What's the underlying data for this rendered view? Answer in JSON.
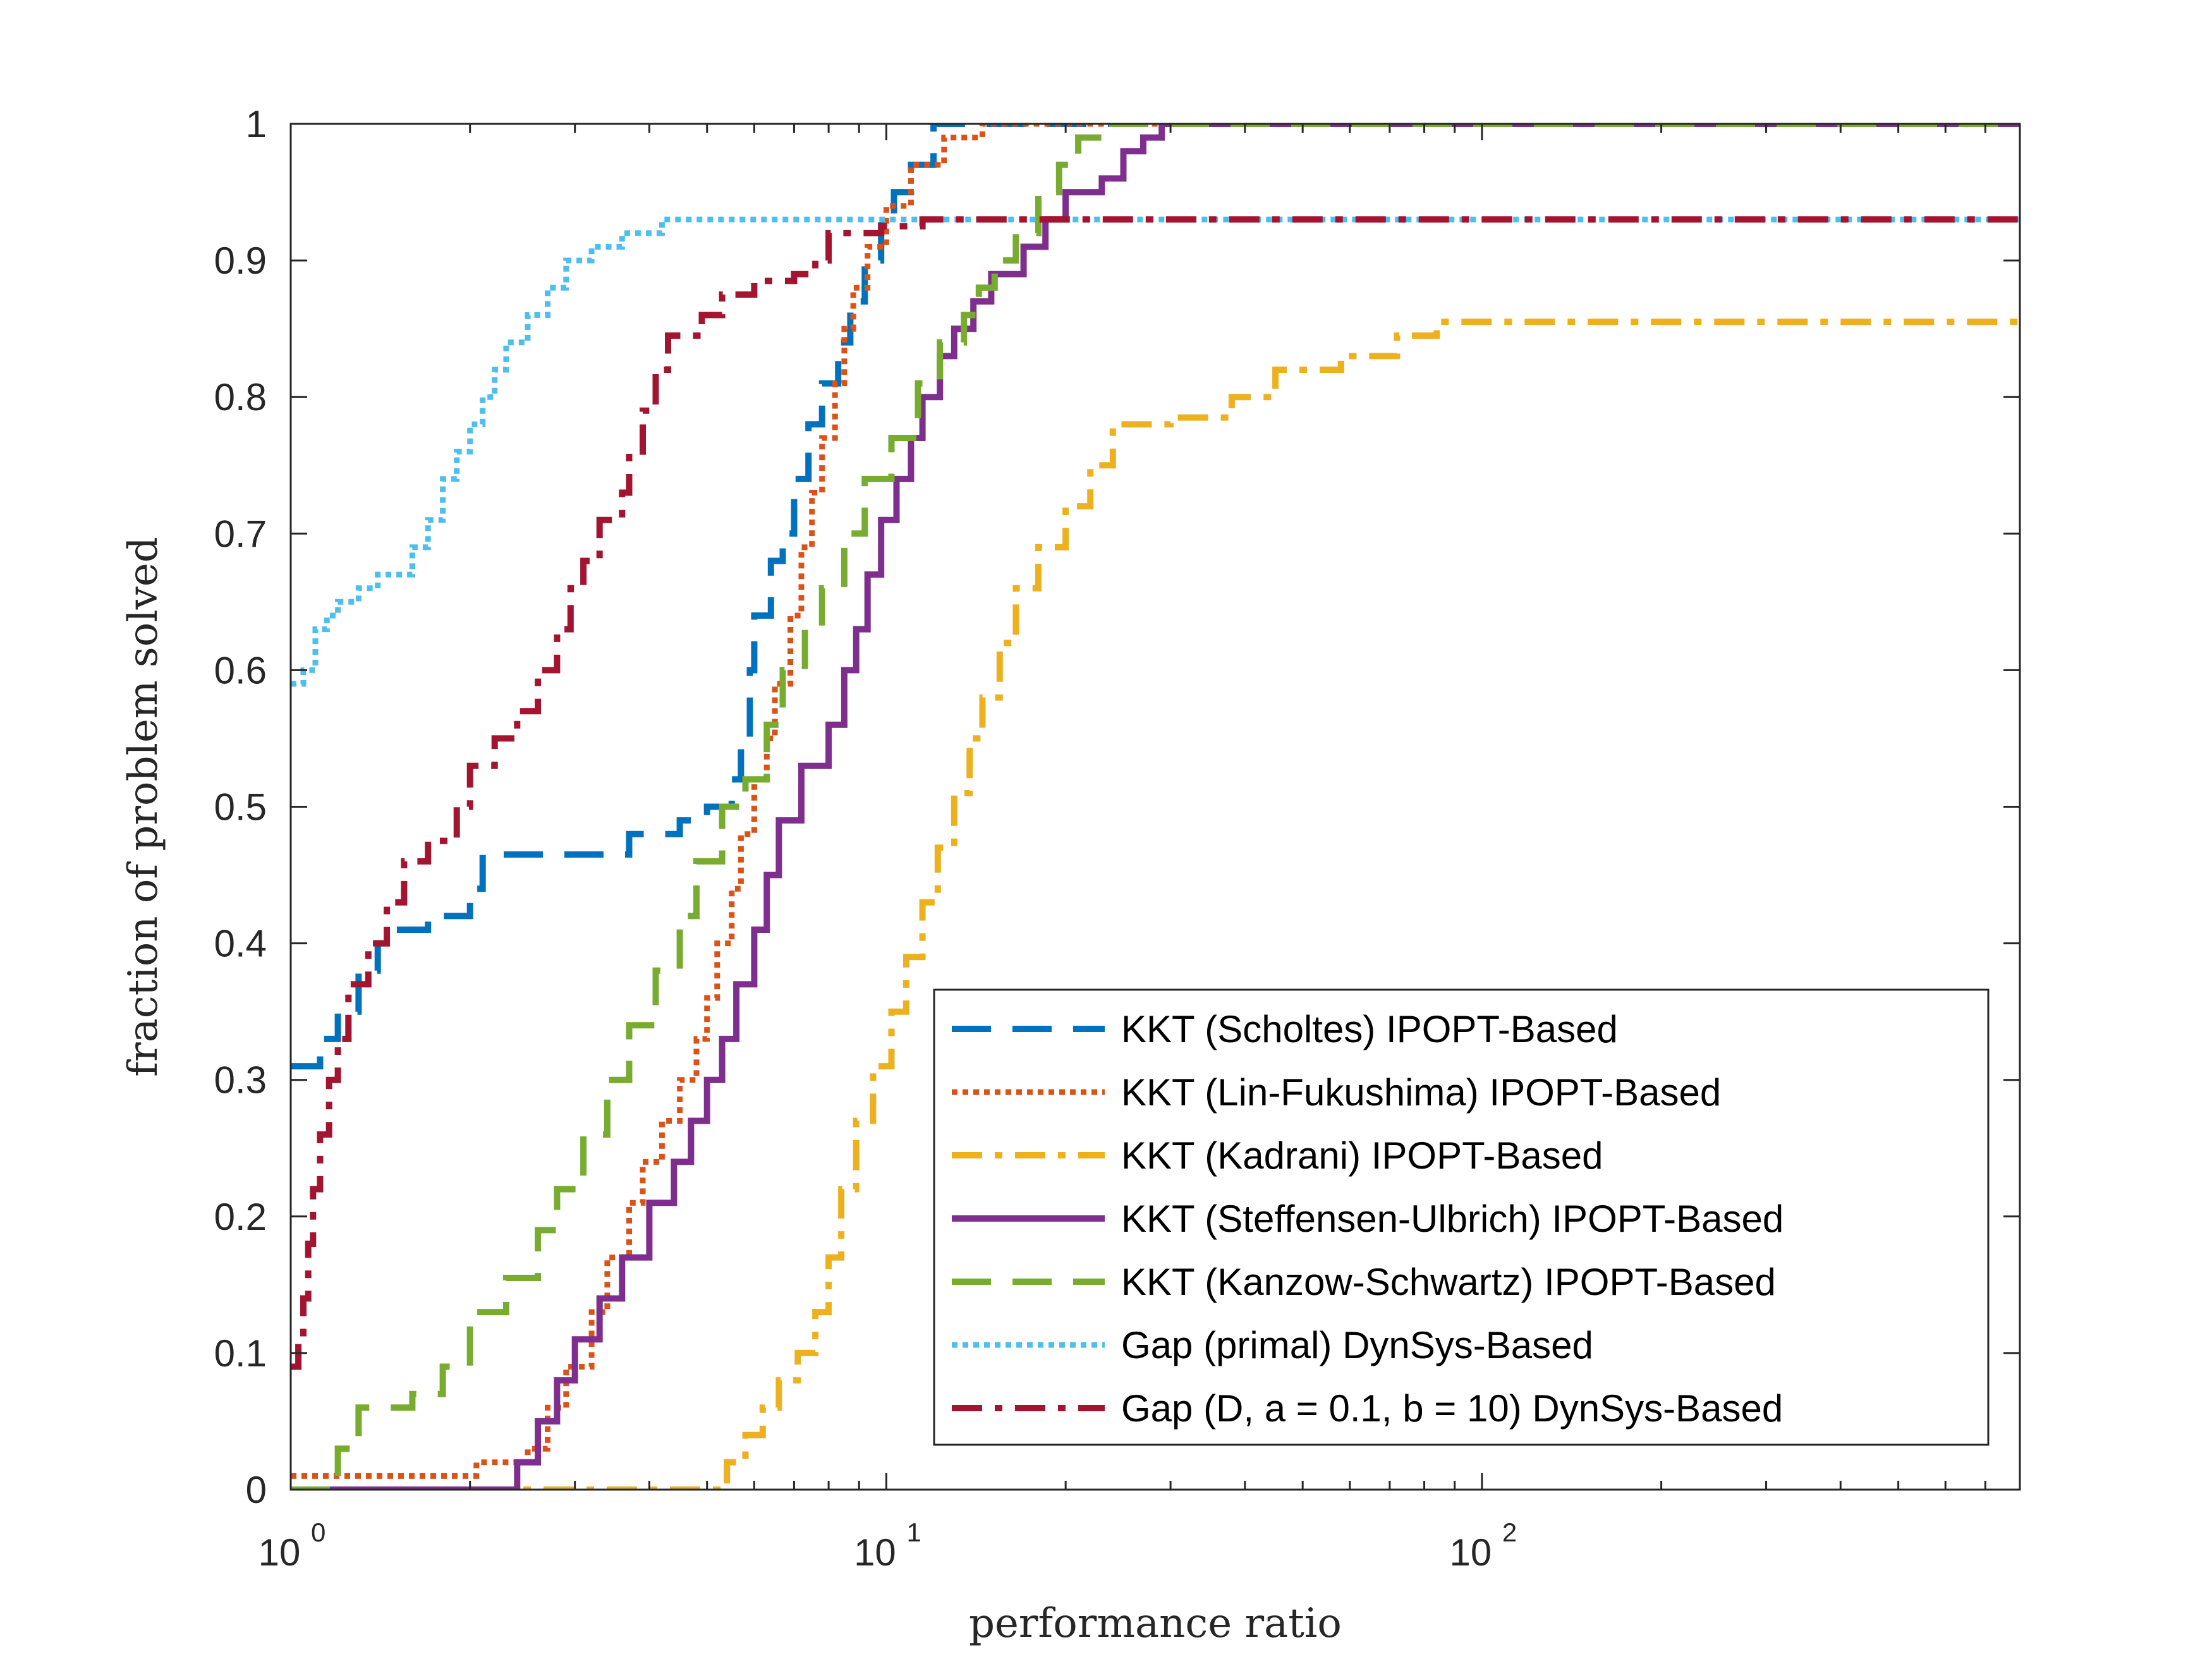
{
  "chart_data": {
    "type": "line",
    "step": true,
    "xscale": "log",
    "xlim": [
      1,
      800
    ],
    "ylim": [
      0,
      1
    ],
    "xlabel": "performance ratio",
    "ylabel": "fraction of problem solved",
    "x_ticks": [
      {
        "base": "10",
        "exp": "0",
        "value": 1
      },
      {
        "base": "10",
        "exp": "1",
        "value": 10
      },
      {
        "base": "10",
        "exp": "2",
        "value": 100
      }
    ],
    "y_ticks": [
      "0",
      "0.1",
      "0.2",
      "0.3",
      "0.4",
      "0.5",
      "0.6",
      "0.7",
      "0.8",
      "0.9",
      "1"
    ],
    "grid": false,
    "legend_position": "lower-right",
    "series": [
      {
        "name": "KKT (Scholtes) IPOPT-Based",
        "color": "#0072BD",
        "style": "dashed",
        "points": [
          [
            1.0,
            0.31
          ],
          [
            1.1,
            0.31
          ],
          [
            1.12,
            0.33
          ],
          [
            1.2,
            0.35
          ],
          [
            1.3,
            0.38
          ],
          [
            1.4,
            0.4
          ],
          [
            1.5,
            0.41
          ],
          [
            1.7,
            0.42
          ],
          [
            2.0,
            0.44
          ],
          [
            2.1,
            0.465
          ],
          [
            3.5,
            0.465
          ],
          [
            3.7,
            0.48
          ],
          [
            4.5,
            0.49
          ],
          [
            5.0,
            0.5
          ],
          [
            5.5,
            0.52
          ],
          [
            5.7,
            0.55
          ],
          [
            5.9,
            0.6
          ],
          [
            6.0,
            0.64
          ],
          [
            6.4,
            0.68
          ],
          [
            6.7,
            0.7
          ],
          [
            7.0,
            0.74
          ],
          [
            7.4,
            0.78
          ],
          [
            7.8,
            0.81
          ],
          [
            8.3,
            0.84
          ],
          [
            8.7,
            0.87
          ],
          [
            9.2,
            0.9
          ],
          [
            9.8,
            0.93
          ],
          [
            10.3,
            0.95
          ],
          [
            11.0,
            0.97
          ],
          [
            12.0,
            1.0
          ],
          [
            800,
            1.0
          ]
        ]
      },
      {
        "name": "KKT (Lin-Fukushima) IPOPT-Based",
        "color": "#D95319",
        "style": "dotted",
        "points": [
          [
            1.0,
            0.01
          ],
          [
            2.0,
            0.01
          ],
          [
            2.05,
            0.02
          ],
          [
            2.5,
            0.03
          ],
          [
            2.7,
            0.06
          ],
          [
            2.9,
            0.09
          ],
          [
            3.2,
            0.13
          ],
          [
            3.4,
            0.17
          ],
          [
            3.7,
            0.21
          ],
          [
            3.9,
            0.24
          ],
          [
            4.2,
            0.27
          ],
          [
            4.5,
            0.3
          ],
          [
            4.8,
            0.33
          ],
          [
            5.0,
            0.36
          ],
          [
            5.2,
            0.4
          ],
          [
            5.5,
            0.44
          ],
          [
            5.7,
            0.48
          ],
          [
            6.0,
            0.52
          ],
          [
            6.3,
            0.55
          ],
          [
            6.5,
            0.59
          ],
          [
            6.9,
            0.64
          ],
          [
            7.2,
            0.69
          ],
          [
            7.5,
            0.73
          ],
          [
            7.8,
            0.77
          ],
          [
            8.2,
            0.81
          ],
          [
            8.5,
            0.85
          ],
          [
            8.8,
            0.88
          ],
          [
            9.3,
            0.91
          ],
          [
            10.0,
            0.94
          ],
          [
            11.0,
            0.97
          ],
          [
            12.5,
            0.99
          ],
          [
            14.5,
            1.0
          ],
          [
            800,
            1.0
          ]
        ]
      },
      {
        "name": "KKT (Kadrani) IPOPT-Based",
        "color": "#EDB120",
        "style": "dash-dot",
        "points": [
          [
            1.0,
            0.0
          ],
          [
            5.2,
            0.0
          ],
          [
            5.4,
            0.02
          ],
          [
            5.8,
            0.04
          ],
          [
            6.2,
            0.06
          ],
          [
            6.6,
            0.08
          ],
          [
            7.1,
            0.1
          ],
          [
            7.6,
            0.13
          ],
          [
            8.0,
            0.17
          ],
          [
            8.4,
            0.22
          ],
          [
            8.9,
            0.27
          ],
          [
            9.5,
            0.31
          ],
          [
            10.2,
            0.35
          ],
          [
            10.8,
            0.39
          ],
          [
            11.5,
            0.43
          ],
          [
            12.2,
            0.47
          ],
          [
            13.0,
            0.51
          ],
          [
            13.8,
            0.55
          ],
          [
            14.5,
            0.58
          ],
          [
            15.5,
            0.62
          ],
          [
            16.5,
            0.66
          ],
          [
            18.0,
            0.69
          ],
          [
            20.0,
            0.72
          ],
          [
            22.0,
            0.75
          ],
          [
            24.0,
            0.78
          ],
          [
            30.0,
            0.785
          ],
          [
            38.0,
            0.8
          ],
          [
            45.0,
            0.82
          ],
          [
            58.0,
            0.83
          ],
          [
            72.0,
            0.845
          ],
          [
            84.0,
            0.855
          ],
          [
            800,
            0.855
          ]
        ]
      },
      {
        "name": "KKT (Steffensen-Ulbrich) IPOPT-Based",
        "color": "#7E2F8E",
        "style": "solid",
        "points": [
          [
            1.0,
            0.0
          ],
          [
            2.3,
            0.0
          ],
          [
            2.4,
            0.02
          ],
          [
            2.6,
            0.05
          ],
          [
            2.8,
            0.08
          ],
          [
            3.0,
            0.11
          ],
          [
            3.3,
            0.14
          ],
          [
            3.6,
            0.17
          ],
          [
            4.0,
            0.21
          ],
          [
            4.4,
            0.24
          ],
          [
            4.7,
            0.27
          ],
          [
            5.0,
            0.3
          ],
          [
            5.3,
            0.33
          ],
          [
            5.6,
            0.37
          ],
          [
            6.0,
            0.41
          ],
          [
            6.3,
            0.45
          ],
          [
            6.6,
            0.49
          ],
          [
            7.2,
            0.53
          ],
          [
            8.0,
            0.56
          ],
          [
            8.5,
            0.6
          ],
          [
            8.9,
            0.63
          ],
          [
            9.3,
            0.67
          ],
          [
            9.8,
            0.71
          ],
          [
            10.4,
            0.74
          ],
          [
            11.0,
            0.77
          ],
          [
            11.5,
            0.8
          ],
          [
            12.3,
            0.83
          ],
          [
            13.0,
            0.85
          ],
          [
            14.0,
            0.87
          ],
          [
            15.0,
            0.89
          ],
          [
            17.0,
            0.91
          ],
          [
            18.5,
            0.93
          ],
          [
            20.0,
            0.95
          ],
          [
            23.0,
            0.96
          ],
          [
            25.0,
            0.98
          ],
          [
            27.0,
            0.99
          ],
          [
            29.0,
            1.0
          ],
          [
            800,
            1.0
          ]
        ]
      },
      {
        "name": "KKT (Kanzow-Schwartz) IPOPT-Based",
        "color": "#77AC30",
        "style": "dashed",
        "points": [
          [
            1.0,
            0.0
          ],
          [
            1.15,
            0.0
          ],
          [
            1.2,
            0.03
          ],
          [
            1.3,
            0.06
          ],
          [
            1.6,
            0.07
          ],
          [
            1.8,
            0.09
          ],
          [
            2.0,
            0.13
          ],
          [
            2.3,
            0.155
          ],
          [
            2.6,
            0.19
          ],
          [
            2.8,
            0.22
          ],
          [
            3.1,
            0.26
          ],
          [
            3.4,
            0.3
          ],
          [
            3.7,
            0.34
          ],
          [
            4.1,
            0.38
          ],
          [
            4.5,
            0.42
          ],
          [
            4.8,
            0.46
          ],
          [
            5.3,
            0.5
          ],
          [
            5.8,
            0.52
          ],
          [
            6.3,
            0.56
          ],
          [
            6.7,
            0.6
          ],
          [
            7.3,
            0.63
          ],
          [
            7.8,
            0.66
          ],
          [
            8.5,
            0.7
          ],
          [
            9.2,
            0.74
          ],
          [
            10.2,
            0.77
          ],
          [
            11.3,
            0.81
          ],
          [
            12.3,
            0.84
          ],
          [
            13.5,
            0.86
          ],
          [
            14.3,
            0.88
          ],
          [
            15.2,
            0.9
          ],
          [
            16.5,
            0.92
          ],
          [
            18.0,
            0.95
          ],
          [
            19.5,
            0.97
          ],
          [
            21.0,
            0.99
          ],
          [
            23.0,
            1.0
          ],
          [
            800,
            1.0
          ]
        ]
      },
      {
        "name": "Gap (primal) DynSys-Based",
        "color": "#4DBEEE",
        "style": "dotted",
        "points": [
          [
            1.0,
            0.59
          ],
          [
            1.05,
            0.6
          ],
          [
            1.1,
            0.63
          ],
          [
            1.15,
            0.64
          ],
          [
            1.2,
            0.65
          ],
          [
            1.3,
            0.66
          ],
          [
            1.4,
            0.67
          ],
          [
            1.6,
            0.69
          ],
          [
            1.7,
            0.71
          ],
          [
            1.8,
            0.74
          ],
          [
            1.9,
            0.76
          ],
          [
            2.0,
            0.78
          ],
          [
            2.1,
            0.8
          ],
          [
            2.2,
            0.82
          ],
          [
            2.3,
            0.84
          ],
          [
            2.5,
            0.86
          ],
          [
            2.7,
            0.88
          ],
          [
            2.9,
            0.9
          ],
          [
            3.2,
            0.91
          ],
          [
            3.6,
            0.92
          ],
          [
            4.2,
            0.93
          ],
          [
            800,
            0.93
          ]
        ]
      },
      {
        "name": "Gap (D, a = 0.1, b = 10) DynSys-Based",
        "color": "#A2142F",
        "style": "dash-dot",
        "points": [
          [
            1.0,
            0.09
          ],
          [
            1.03,
            0.11
          ],
          [
            1.05,
            0.14
          ],
          [
            1.07,
            0.18
          ],
          [
            1.09,
            0.22
          ],
          [
            1.12,
            0.26
          ],
          [
            1.16,
            0.3
          ],
          [
            1.2,
            0.33
          ],
          [
            1.25,
            0.37
          ],
          [
            1.35,
            0.4
          ],
          [
            1.45,
            0.43
          ],
          [
            1.55,
            0.46
          ],
          [
            1.7,
            0.475
          ],
          [
            1.9,
            0.5
          ],
          [
            2.0,
            0.53
          ],
          [
            2.2,
            0.55
          ],
          [
            2.4,
            0.57
          ],
          [
            2.6,
            0.6
          ],
          [
            2.8,
            0.63
          ],
          [
            2.95,
            0.66
          ],
          [
            3.1,
            0.68
          ],
          [
            3.3,
            0.71
          ],
          [
            3.6,
            0.73
          ],
          [
            3.7,
            0.76
          ],
          [
            3.9,
            0.79
          ],
          [
            4.1,
            0.82
          ],
          [
            4.3,
            0.845
          ],
          [
            4.9,
            0.86
          ],
          [
            5.3,
            0.875
          ],
          [
            6.0,
            0.885
          ],
          [
            7.0,
            0.89
          ],
          [
            7.6,
            0.9
          ],
          [
            8.0,
            0.92
          ],
          [
            9.8,
            0.925
          ],
          [
            11.5,
            0.93
          ],
          [
            800,
            0.93
          ]
        ]
      }
    ]
  }
}
